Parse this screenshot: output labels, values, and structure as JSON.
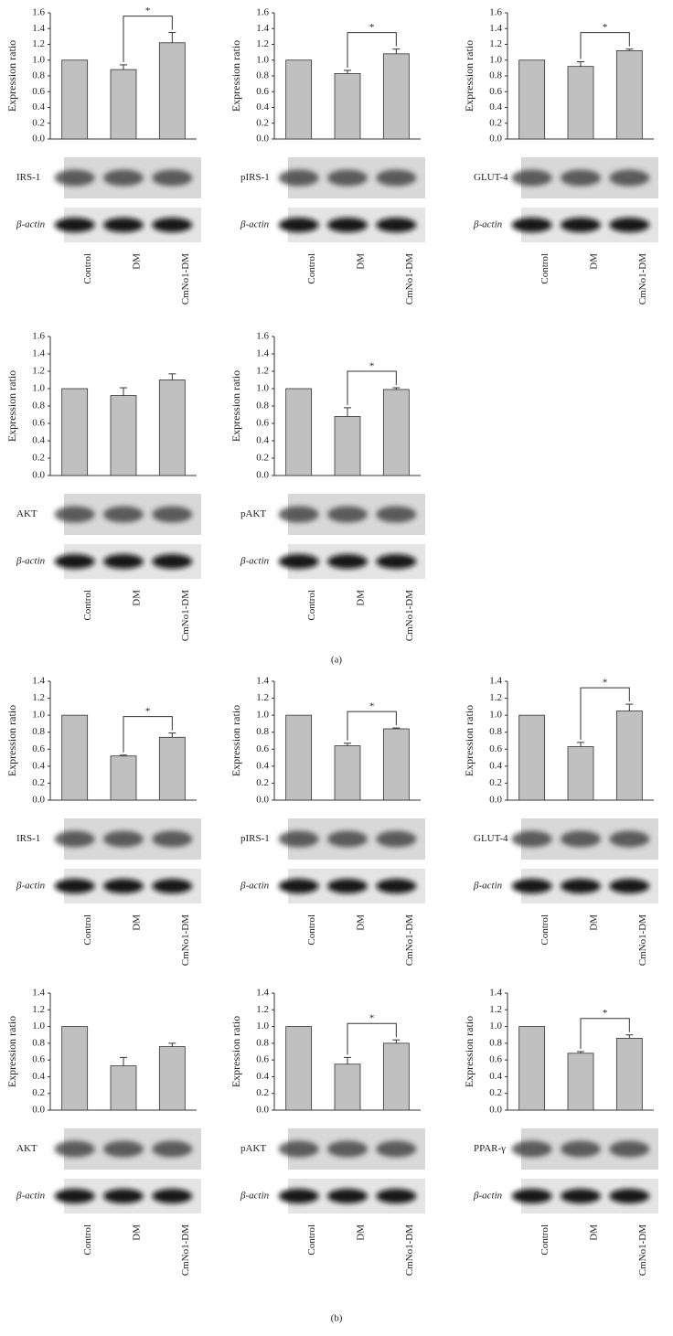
{
  "chart_data": [
    {
      "type": "bar",
      "ylabel": "Expression ratio",
      "categories": [
        "Control",
        "DM",
        "CmNo1-DM"
      ],
      "values": [
        1.0,
        0.88,
        1.22
      ],
      "errors": [
        null,
        0.06,
        0.13
      ],
      "color": "#c0c0c0",
      "ylim": [
        0,
        1.6
      ],
      "yticks": [
        {
          "value": 0,
          "label": "0.0"
        },
        0.2,
        0.4,
        0.6,
        0.8,
        {
          "value": 1,
          "label": "1.0"
        },
        1.2,
        1.4,
        1.6
      ],
      "annotations": [
        {
          "text": "*",
          "between": [
            "DM",
            "CmNo1-DM"
          ]
        }
      ],
      "blot_labels": [
        "IRS-1",
        "β-actin"
      ]
    },
    {
      "type": "bar",
      "ylabel": "Expression ratio",
      "categories": [
        "Control",
        "DM",
        "CmNo1-DM"
      ],
      "values": [
        1.0,
        0.83,
        1.08
      ],
      "errors": [
        null,
        0.04,
        0.06
      ],
      "color": "#c0c0c0",
      "ylim": [
        0,
        1.6
      ],
      "yticks": [
        {
          "value": 0,
          "label": "0.0"
        },
        0.2,
        0.4,
        0.6,
        0.8,
        {
          "value": 1,
          "label": "1.0"
        },
        1.2,
        1.4,
        1.6
      ],
      "annotations": [
        {
          "text": "*",
          "between": [
            "DM",
            "CmNo1-DM"
          ]
        }
      ],
      "blot_labels": [
        "pIRS-1",
        "β-actin"
      ]
    },
    {
      "type": "bar",
      "ylabel": "Expression ratio",
      "categories": [
        "Control",
        "DM",
        "CmNo1-DM"
      ],
      "values": [
        1.0,
        0.92,
        1.12
      ],
      "errors": [
        null,
        0.06,
        0.02
      ],
      "color": "#c0c0c0",
      "ylim": [
        0,
        1.6
      ],
      "yticks": [
        {
          "value": 0,
          "label": "0.0"
        },
        0.2,
        0.4,
        0.6,
        0.8,
        {
          "value": 1,
          "label": "1.0"
        },
        1.2,
        1.4,
        1.6
      ],
      "annotations": [
        {
          "text": "*",
          "between": [
            "DM",
            "CmNo1-DM"
          ]
        }
      ],
      "blot_labels": [
        "GLUT-4",
        "β-actin"
      ]
    },
    {
      "type": "bar",
      "ylabel": "Expression ratio",
      "categories": [
        "Control",
        "DM",
        "CmNo1-DM"
      ],
      "values": [
        1.0,
        0.92,
        1.1
      ],
      "errors": [
        null,
        0.09,
        0.07
      ],
      "color": "#c0c0c0",
      "ylim": [
        0,
        1.6
      ],
      "yticks": [
        {
          "value": 0,
          "label": "0.0"
        },
        0.2,
        0.4,
        0.6,
        0.8,
        {
          "value": 1,
          "label": "1.0"
        },
        1.2,
        1.4,
        1.6
      ],
      "blot_labels": [
        "AKT",
        "β-actin"
      ]
    },
    {
      "type": "bar",
      "ylabel": "Expression ratio",
      "categories": [
        "Control",
        "DM",
        "CmNo1-DM"
      ],
      "values": [
        1.0,
        0.68,
        0.99
      ],
      "errors": [
        null,
        0.1,
        0.02
      ],
      "color": "#c0c0c0",
      "ylim": [
        0,
        1.6
      ],
      "yticks": [
        {
          "value": 0,
          "label": "0.0"
        },
        0.2,
        0.4,
        0.6,
        0.8,
        {
          "value": 1,
          "label": "1.0"
        },
        1.2,
        1.4,
        1.6
      ],
      "annotations": [
        {
          "text": "*",
          "between": [
            "DM",
            "CmNo1-DM"
          ]
        }
      ],
      "blot_labels": [
        "pAKT",
        "β-actin"
      ]
    },
    {
      "type": "bar",
      "ylabel": "Expression ratio",
      "categories": [
        "Control",
        "DM",
        "CmNo1-DM"
      ],
      "values": [
        1.0,
        0.52,
        0.74
      ],
      "errors": [
        null,
        0.01,
        0.05
      ],
      "color": "#c0c0c0",
      "ylim": [
        0,
        1.4
      ],
      "yticks": [
        {
          "value": 0,
          "label": "0.0"
        },
        0.2,
        0.4,
        0.6,
        0.8,
        {
          "value": 1,
          "label": "1.0"
        },
        1.2,
        1.4
      ],
      "annotations": [
        {
          "text": "*",
          "between": [
            "DM",
            "CmNo1-DM"
          ]
        }
      ],
      "blot_labels": [
        "IRS-1",
        "β-actin"
      ]
    },
    {
      "type": "bar",
      "ylabel": "Expression ratio",
      "categories": [
        "Control",
        "DM",
        "CmNo1-DM"
      ],
      "values": [
        1.0,
        0.64,
        0.84
      ],
      "errors": [
        null,
        0.03,
        0.01
      ],
      "color": "#c0c0c0",
      "ylim": [
        0,
        1.4
      ],
      "yticks": [
        {
          "value": 0,
          "label": "0.0"
        },
        0.2,
        0.4,
        0.6,
        0.8,
        {
          "value": 1,
          "label": "1.0"
        },
        1.2,
        1.4
      ],
      "annotations": [
        {
          "text": "*",
          "between": [
            "DM",
            "CmNo1-DM"
          ]
        }
      ],
      "blot_labels": [
        "pIRS-1",
        "β-actin"
      ]
    },
    {
      "type": "bar",
      "ylabel": "Expression ratio",
      "categories": [
        "Control",
        "DM",
        "CmNo1-DM"
      ],
      "values": [
        1.0,
        0.63,
        1.05
      ],
      "errors": [
        null,
        0.05,
        0.08
      ],
      "color": "#c0c0c0",
      "ylim": [
        0,
        1.4
      ],
      "yticks": [
        {
          "value": 0,
          "label": "0.0"
        },
        0.2,
        0.4,
        0.6,
        0.8,
        {
          "value": 1,
          "label": "1.0"
        },
        1.2,
        1.4
      ],
      "annotations": [
        {
          "text": "*",
          "between": [
            "DM",
            "CmNo1-DM"
          ]
        }
      ],
      "blot_labels": [
        "GLUT-4",
        "β-actin"
      ]
    },
    {
      "type": "bar",
      "ylabel": "Expression ratio",
      "categories": [
        "Control",
        "DM",
        "CmNo1-DM"
      ],
      "values": [
        1.0,
        0.53,
        0.76
      ],
      "errors": [
        null,
        0.1,
        0.04
      ],
      "color": "#c0c0c0",
      "ylim": [
        0,
        1.4
      ],
      "yticks": [
        {
          "value": 0,
          "label": "0.0"
        },
        0.2,
        0.4,
        0.6,
        0.8,
        {
          "value": 1,
          "label": "1.0"
        },
        1.2,
        1.4
      ],
      "blot_labels": [
        "AKT",
        "β-actin"
      ]
    },
    {
      "type": "bar",
      "ylabel": "Expression ratio",
      "categories": [
        "Control",
        "DM",
        "CmNo1-DM"
      ],
      "values": [
        1.0,
        0.55,
        0.8
      ],
      "errors": [
        null,
        0.08,
        0.04
      ],
      "color": "#c0c0c0",
      "ylim": [
        0,
        1.4
      ],
      "yticks": [
        {
          "value": 0,
          "label": "0.0"
        },
        0.2,
        0.4,
        0.6,
        0.8,
        {
          "value": 1,
          "label": "1.0"
        },
        1.2,
        1.4
      ],
      "annotations": [
        {
          "text": "*",
          "between": [
            "DM",
            "CmNo1-DM"
          ]
        }
      ],
      "blot_labels": [
        "pAKT",
        "β-actin"
      ]
    },
    {
      "type": "bar",
      "ylabel": "Expression ratio",
      "categories": [
        "Control",
        "DM",
        "CmNo1-DM"
      ],
      "values": [
        1.0,
        0.68,
        0.86
      ],
      "errors": [
        null,
        0.02,
        0.04
      ],
      "color": "#c0c0c0",
      "ylim": [
        0,
        1.4
      ],
      "yticks": [
        {
          "value": 0,
          "label": "0.0"
        },
        0.2,
        0.4,
        0.6,
        0.8,
        {
          "value": 1,
          "label": "1.0"
        },
        1.2,
        1.4
      ],
      "annotations": [
        {
          "text": "*",
          "between": [
            "DM",
            "CmNo1-DM"
          ]
        }
      ],
      "blot_labels": [
        "PPAR-γ",
        "β-actin"
      ]
    }
  ],
  "panel_labels": [
    "(a)",
    "(b)"
  ]
}
